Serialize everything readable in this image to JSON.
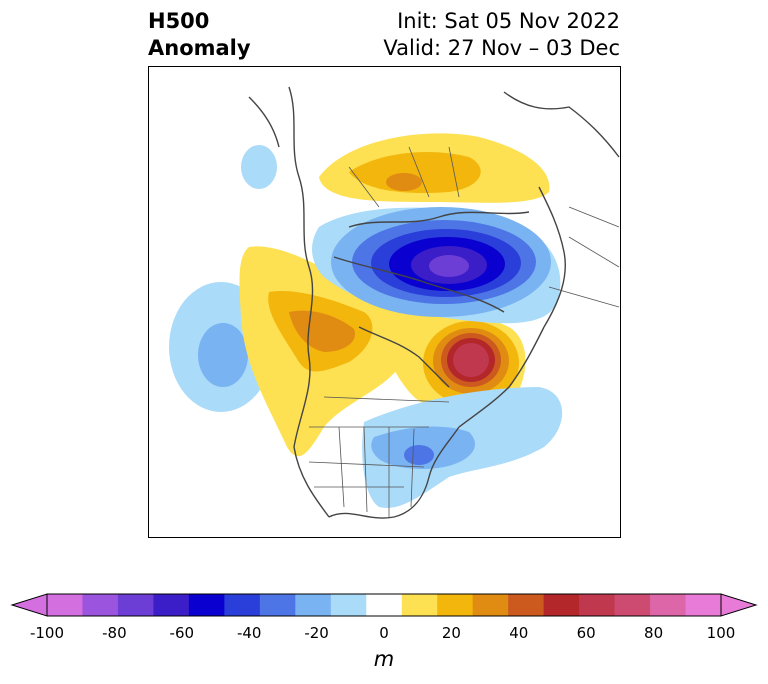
{
  "title": {
    "left_line1": "H500",
    "left_line2": "Anomaly",
    "right_line1": "Init: Sat 05 Nov 2022",
    "right_line2": "Valid: 27 Nov – 03 Dec"
  },
  "colorbar": {
    "unit": "m",
    "ticks": [
      "-100",
      "-80",
      "-60",
      "-40",
      "-20",
      "0",
      "20",
      "40",
      "60",
      "80",
      "100"
    ],
    "levels": [
      -100,
      -90,
      -80,
      -70,
      -60,
      -50,
      -40,
      -30,
      -20,
      -10,
      10,
      20,
      30,
      40,
      50,
      60,
      70,
      80,
      90,
      100
    ],
    "colors": [
      "#d46fe0",
      "#9a54dd",
      "#6c3ed6",
      "#3c1ec8",
      "#0a00cf",
      "#2a3ed9",
      "#4d75e6",
      "#79b3f2",
      "#aadbf9",
      "#ffffff",
      "#fde152",
      "#f3b60d",
      "#e08c12",
      "#cc5a1e",
      "#b3262a",
      "#c0384d",
      "#cd4b70",
      "#dc66a8",
      "#e87ad8"
    ],
    "extend": "both"
  },
  "map": {
    "variable": "500 hPa geopotential height anomaly",
    "region": "North America / North Pacific / Arctic (polar stereographic)",
    "features": [
      {
        "sign": "negative",
        "location": "Hudson Bay / Baffin region",
        "peak": -70
      },
      {
        "sign": "positive",
        "location": "Labrador Sea / south of Greenland",
        "peak": 60
      },
      {
        "sign": "positive",
        "location": "Arctic Ocean / Siberia side",
        "peak": 30
      },
      {
        "sign": "positive",
        "location": "Western Canada / Pacific Northwest",
        "peak": 30
      },
      {
        "sign": "negative",
        "location": "Central North Pacific",
        "peak": -30
      },
      {
        "sign": "negative",
        "location": "Eastern United States",
        "peak": -30
      },
      {
        "sign": "negative",
        "location": "North Atlantic off US East Coast",
        "peak": -20
      }
    ]
  }
}
